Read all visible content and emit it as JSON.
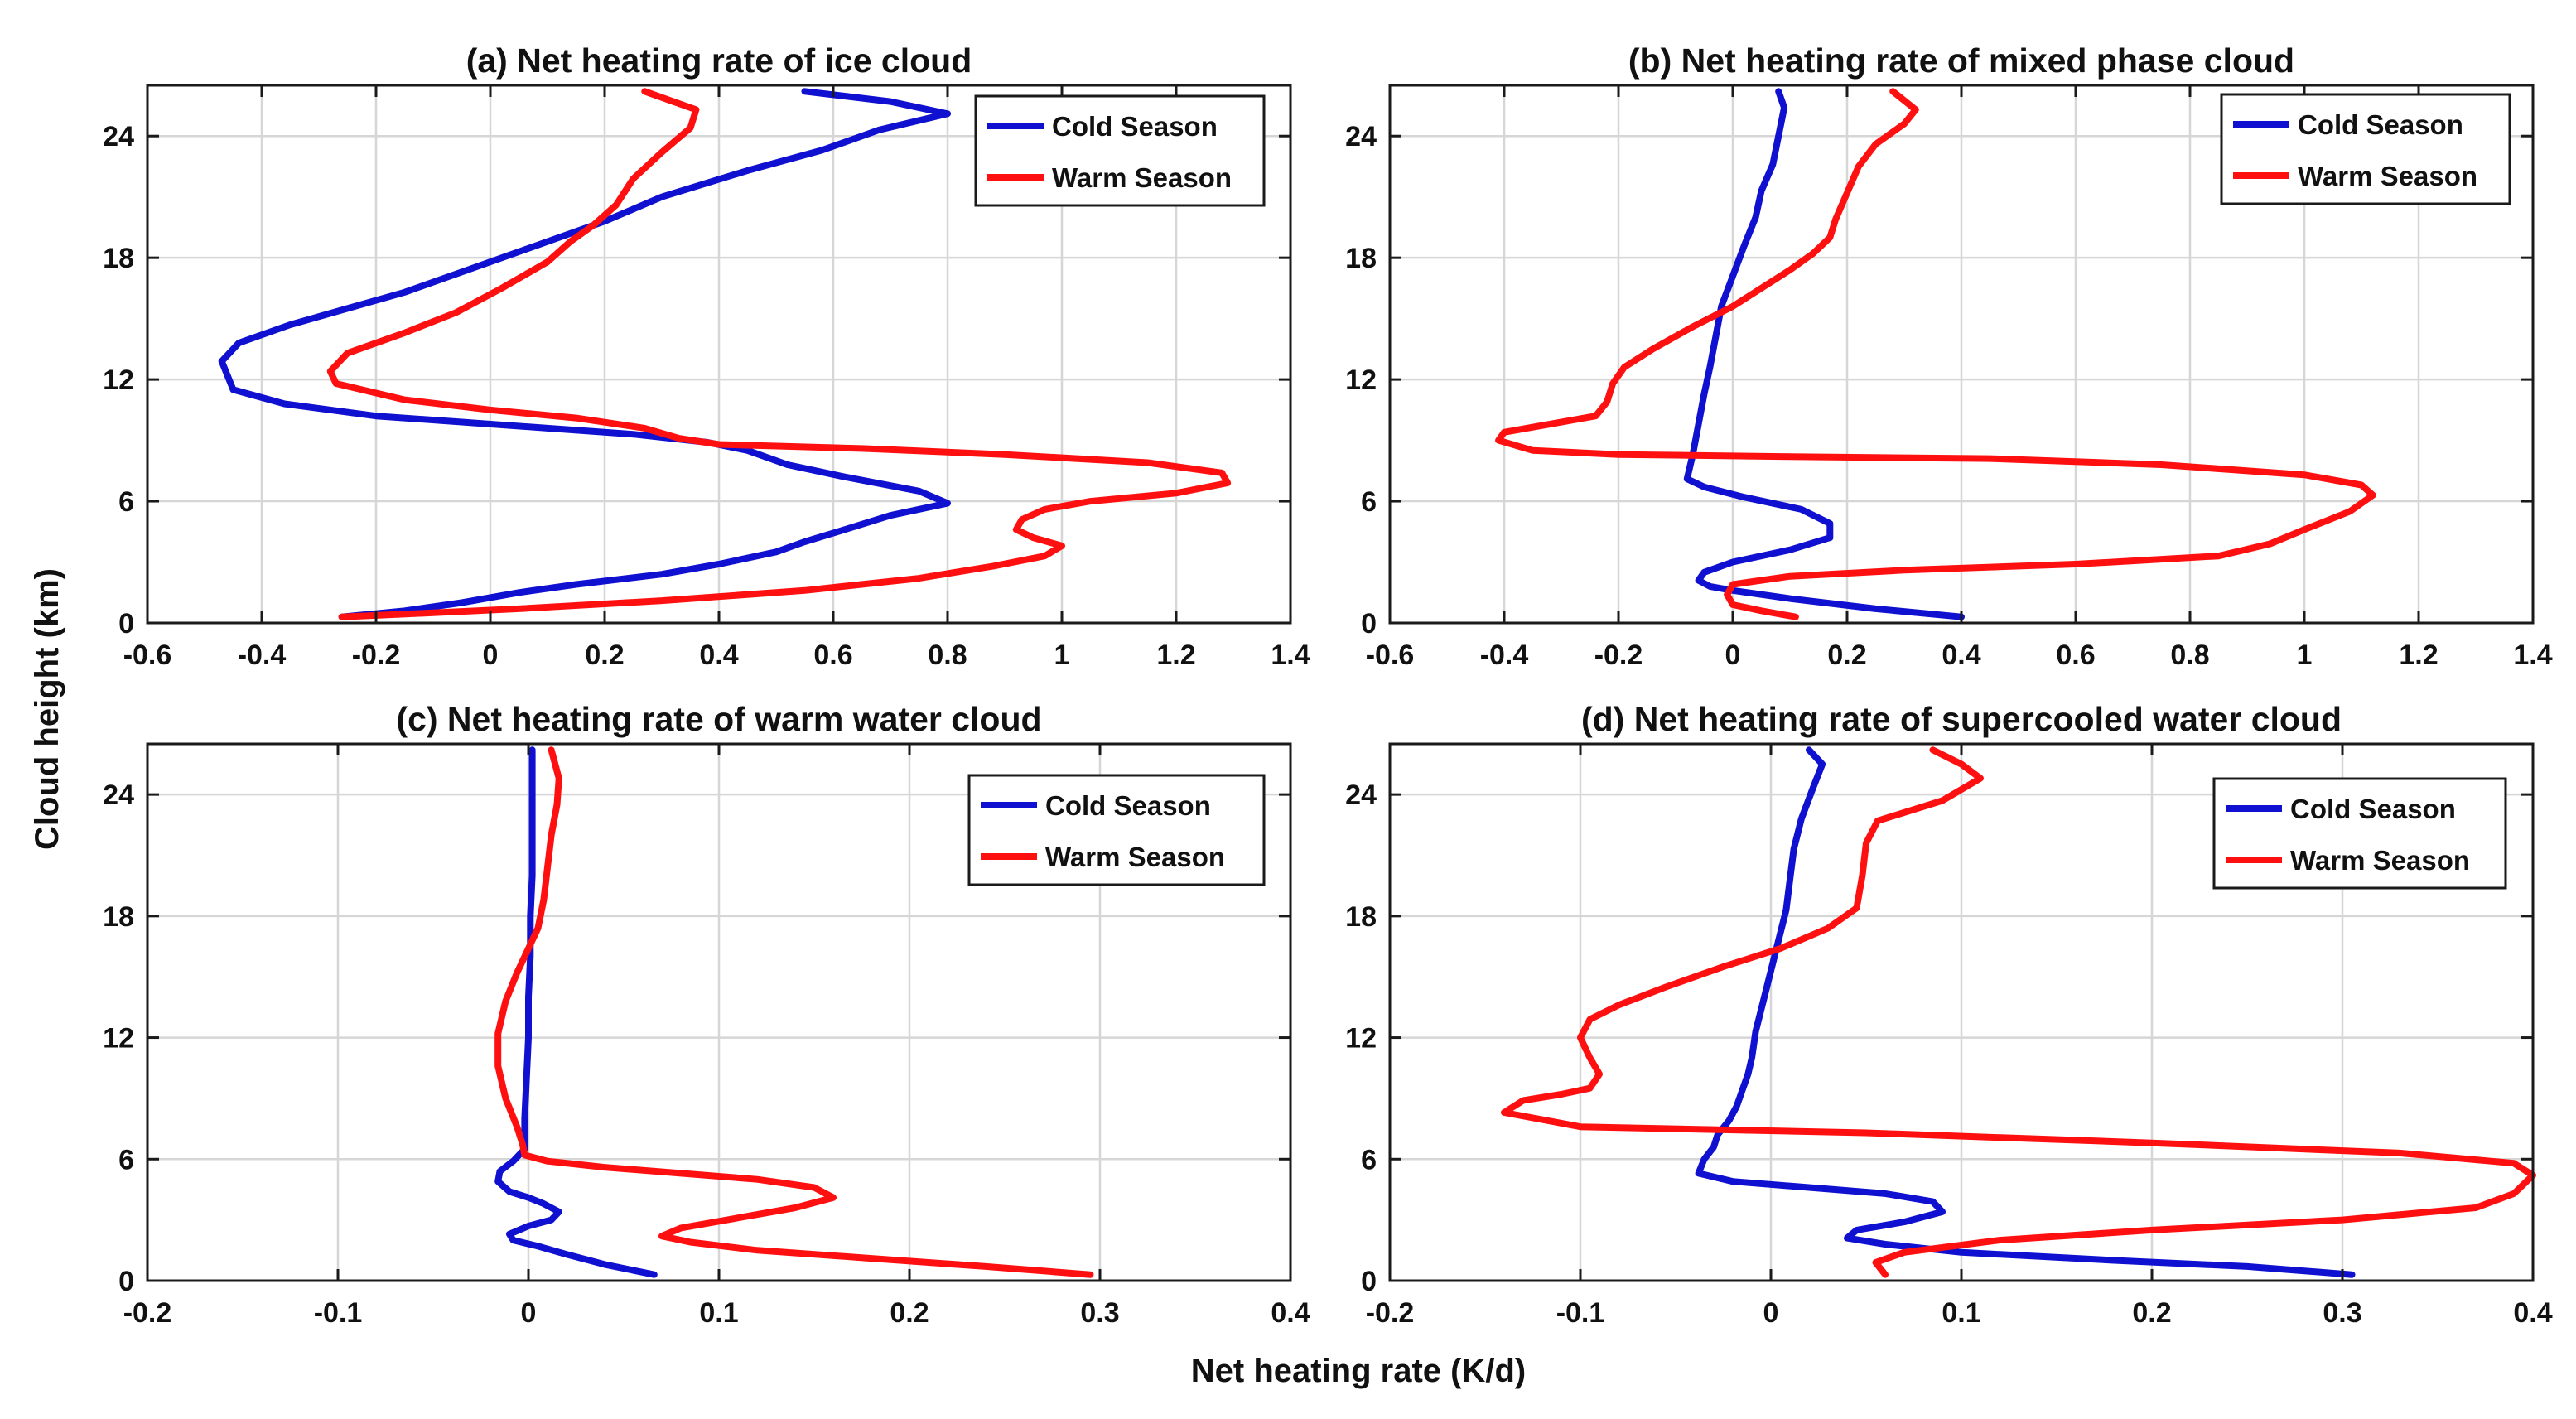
{
  "figure": {
    "shared_ylabel": "Cloud height (km)",
    "shared_xlabel": "Net heating rate (K/d)",
    "colors": {
      "cold": "#1010d0",
      "warm": "#ff1010"
    }
  },
  "chart_data": [
    {
      "type": "line",
      "title": "(a)  Net heating rate of ice cloud",
      "xlabel": "Net heating rate (K/d)",
      "ylabel": "Cloud height (km)",
      "xlim": [
        -0.6,
        1.4
      ],
      "ylim": [
        0,
        26.5
      ],
      "xticks": [
        -0.6,
        -0.4,
        -0.2,
        0,
        0.2,
        0.4,
        0.6,
        0.8,
        1,
        1.2,
        1.4
      ],
      "xtick_labels": [
        "-0.6",
        "-0.4",
        "-0.2",
        "0",
        "0.2",
        "0.4",
        "0.6",
        "0.8",
        "1",
        "1.2",
        "1.4"
      ],
      "yticks": [
        0,
        6,
        12,
        18,
        24
      ],
      "ytick_labels": [
        "0",
        "6",
        "12",
        "18",
        "24"
      ],
      "legend_position": "top-right",
      "series": [
        {
          "name": "Cold Season",
          "color": "#1010d0",
          "x": [
            -0.26,
            -0.15,
            -0.05,
            0.05,
            0.15,
            0.3,
            0.4,
            0.5,
            0.55,
            0.62,
            0.7,
            0.8,
            0.75,
            0.62,
            0.52,
            0.45,
            0.38,
            0.25,
            0.1,
            -0.05,
            -0.2,
            -0.36,
            -0.45,
            -0.46,
            -0.47,
            -0.44,
            -0.35,
            -0.25,
            -0.15,
            -0.02,
            0.1,
            0.2,
            0.3,
            0.45,
            0.58,
            0.68,
            0.8,
            0.7,
            0.55
          ],
          "y": [
            0.3,
            0.6,
            1.0,
            1.5,
            1.9,
            2.4,
            2.9,
            3.5,
            4.0,
            4.6,
            5.3,
            5.9,
            6.5,
            7.2,
            7.8,
            8.5,
            8.9,
            9.3,
            9.6,
            9.9,
            10.2,
            10.8,
            11.5,
            12.2,
            12.9,
            13.8,
            14.7,
            15.5,
            16.3,
            17.6,
            18.8,
            19.8,
            21.0,
            22.3,
            23.3,
            24.3,
            25.1,
            25.7,
            26.2
          ]
        },
        {
          "name": "Warm Season",
          "color": "#ff1010",
          "x": [
            -0.26,
            -0.1,
            0.05,
            0.3,
            0.55,
            0.75,
            0.88,
            0.97,
            1.0,
            0.95,
            0.92,
            0.93,
            0.97,
            1.05,
            1.2,
            1.29,
            1.28,
            1.15,
            0.9,
            0.65,
            0.4,
            0.33,
            0.27,
            0.15,
            0.0,
            -0.15,
            -0.27,
            -0.28,
            -0.25,
            -0.15,
            -0.06,
            0.02,
            0.1,
            0.14,
            0.18,
            0.22,
            0.25,
            0.3,
            0.35,
            0.36,
            0.27
          ],
          "y": [
            0.3,
            0.5,
            0.7,
            1.1,
            1.6,
            2.2,
            2.8,
            3.3,
            3.8,
            4.2,
            4.6,
            5.1,
            5.6,
            6.0,
            6.4,
            6.9,
            7.4,
            7.9,
            8.3,
            8.6,
            8.8,
            9.1,
            9.6,
            10.1,
            10.5,
            11.0,
            11.8,
            12.4,
            13.3,
            14.3,
            15.3,
            16.5,
            17.8,
            18.8,
            19.6,
            20.6,
            21.9,
            23.2,
            24.4,
            25.3,
            26.2
          ]
        }
      ]
    },
    {
      "type": "line",
      "title": "(b)  Net heating rate of mixed phase cloud",
      "xlabel": "Net heating rate (K/d)",
      "ylabel": "Cloud height (km)",
      "xlim": [
        -0.6,
        1.4
      ],
      "ylim": [
        0,
        26.5
      ],
      "xticks": [
        -0.6,
        -0.4,
        -0.2,
        0,
        0.2,
        0.4,
        0.6,
        0.8,
        1,
        1.2,
        1.4
      ],
      "xtick_labels": [
        "-0.6",
        "-0.4",
        "-0.2",
        "0",
        "0.2",
        "0.4",
        "0.6",
        "0.8",
        "1",
        "1.2",
        "1.4"
      ],
      "yticks": [
        0,
        6,
        12,
        18,
        24
      ],
      "ytick_labels": [
        "0",
        "6",
        "12",
        "18",
        "24"
      ],
      "legend_position": "top-right",
      "series": [
        {
          "name": "Cold Season",
          "color": "#1010d0",
          "x": [
            0.4,
            0.25,
            0.1,
            0.0,
            -0.04,
            -0.06,
            -0.05,
            0.0,
            0.1,
            0.17,
            0.17,
            0.12,
            0.02,
            -0.05,
            -0.08,
            -0.07,
            -0.06,
            -0.05,
            -0.04,
            -0.03,
            -0.02,
            0.0,
            0.02,
            0.04,
            0.05,
            0.07,
            0.08,
            0.09,
            0.08
          ],
          "y": [
            0.3,
            0.7,
            1.2,
            1.6,
            1.8,
            2.1,
            2.5,
            3.0,
            3.6,
            4.2,
            4.9,
            5.6,
            6.2,
            6.7,
            7.1,
            8.3,
            9.8,
            11.3,
            12.6,
            14.1,
            15.6,
            17.1,
            18.6,
            20.0,
            21.3,
            22.6,
            24.0,
            25.4,
            26.2
          ]
        },
        {
          "name": "Warm Season",
          "color": "#ff1010",
          "x": [
            0.11,
            0.05,
            0.0,
            -0.01,
            0.0,
            0.1,
            0.3,
            0.6,
            0.85,
            0.94,
            1.0,
            1.08,
            1.12,
            1.1,
            1.0,
            0.75,
            0.45,
            0.1,
            -0.2,
            -0.35,
            -0.41,
            -0.4,
            -0.32,
            -0.24,
            -0.22,
            -0.21,
            -0.19,
            -0.14,
            -0.07,
            0.0,
            0.05,
            0.1,
            0.14,
            0.17,
            0.18,
            0.2,
            0.22,
            0.25,
            0.3,
            0.32,
            0.28
          ],
          "y": [
            0.3,
            0.6,
            0.9,
            1.4,
            1.9,
            2.3,
            2.6,
            2.9,
            3.3,
            3.9,
            4.6,
            5.5,
            6.3,
            6.8,
            7.3,
            7.8,
            8.1,
            8.2,
            8.3,
            8.5,
            9.0,
            9.4,
            9.8,
            10.2,
            10.9,
            11.8,
            12.6,
            13.5,
            14.6,
            15.6,
            16.5,
            17.4,
            18.2,
            19.0,
            19.9,
            21.2,
            22.5,
            23.6,
            24.6,
            25.3,
            26.2
          ]
        }
      ]
    },
    {
      "type": "line",
      "title": "(c)  Net heating rate of warm water cloud",
      "xlabel": "Net heating rate (K/d)",
      "ylabel": "Cloud height (km)",
      "xlim": [
        -0.2,
        0.4
      ],
      "ylim": [
        0,
        26.5
      ],
      "xticks": [
        -0.2,
        -0.1,
        0,
        0.1,
        0.2,
        0.3,
        0.4
      ],
      "xtick_labels": [
        "-0.2",
        "-0.1",
        "0",
        "0.1",
        "0.2",
        "0.3",
        "0.4"
      ],
      "yticks": [
        0,
        6,
        12,
        18,
        24
      ],
      "ytick_labels": [
        "0",
        "6",
        "12",
        "18",
        "24"
      ],
      "legend_position": "top-right",
      "series": [
        {
          "name": "Cold Season",
          "color": "#1010d0",
          "x": [
            0.066,
            0.04,
            0.02,
            0.005,
            -0.008,
            -0.01,
            0.0,
            0.012,
            0.016,
            0.008,
            0.0,
            -0.01,
            -0.016,
            -0.015,
            -0.008,
            -0.002,
            -0.002,
            -0.001,
            0.0,
            0.0,
            0.001,
            0.001,
            0.002,
            0.002,
            0.002
          ],
          "y": [
            0.3,
            0.8,
            1.3,
            1.7,
            2.0,
            2.3,
            2.7,
            3.0,
            3.4,
            3.8,
            4.1,
            4.4,
            4.9,
            5.4,
            5.9,
            6.5,
            8.0,
            10.0,
            12.0,
            14.0,
            16.0,
            18.0,
            20.0,
            22.5,
            26.2
          ]
        },
        {
          "name": "Warm Season",
          "color": "#ff1010",
          "x": [
            0.295,
            0.24,
            0.18,
            0.12,
            0.085,
            0.07,
            0.08,
            0.11,
            0.14,
            0.16,
            0.15,
            0.12,
            0.08,
            0.04,
            0.01,
            -0.002,
            -0.003,
            -0.006,
            -0.012,
            -0.016,
            -0.016,
            -0.012,
            -0.006,
            0.0,
            0.005,
            0.008,
            0.01,
            0.012,
            0.015,
            0.016,
            0.012
          ],
          "y": [
            0.3,
            0.7,
            1.1,
            1.5,
            1.9,
            2.2,
            2.6,
            3.1,
            3.6,
            4.1,
            4.6,
            5.0,
            5.3,
            5.6,
            5.9,
            6.2,
            6.7,
            7.6,
            9.0,
            10.6,
            12.2,
            13.8,
            15.2,
            16.4,
            17.4,
            18.8,
            20.4,
            22.0,
            23.5,
            24.8,
            26.2
          ]
        }
      ]
    },
    {
      "type": "line",
      "title": "(d)  Net heating rate of supercooled water cloud",
      "xlabel": "Net heating rate (K/d)",
      "ylabel": "Cloud height (km)",
      "xlim": [
        -0.2,
        0.4
      ],
      "ylim": [
        0,
        26.5
      ],
      "xticks": [
        -0.2,
        -0.1,
        0,
        0.1,
        0.2,
        0.3,
        0.4
      ],
      "xtick_labels": [
        "-0.2",
        "-0.1",
        "0",
        "0.1",
        "0.2",
        "0.3",
        "0.4"
      ],
      "yticks": [
        0,
        6,
        12,
        18,
        24
      ],
      "ytick_labels": [
        "0",
        "6",
        "12",
        "18",
        "24"
      ],
      "legend_position": "top-right",
      "series": [
        {
          "name": "Cold Season",
          "color": "#1010d0",
          "x": [
            0.305,
            0.25,
            0.18,
            0.1,
            0.06,
            0.04,
            0.045,
            0.07,
            0.09,
            0.085,
            0.06,
            0.02,
            -0.02,
            -0.038,
            -0.035,
            -0.03,
            -0.028,
            -0.022,
            -0.018,
            -0.015,
            -0.012,
            -0.01,
            -0.008,
            -0.004,
            0.0,
            0.004,
            0.008,
            0.01,
            0.012,
            0.016,
            0.022,
            0.027,
            0.02
          ],
          "y": [
            0.3,
            0.7,
            1.0,
            1.4,
            1.8,
            2.1,
            2.5,
            2.9,
            3.4,
            3.9,
            4.3,
            4.6,
            4.9,
            5.3,
            6.0,
            6.6,
            7.2,
            7.9,
            8.6,
            9.4,
            10.2,
            11.0,
            12.3,
            13.8,
            15.3,
            16.8,
            18.3,
            19.8,
            21.3,
            22.8,
            24.3,
            25.5,
            26.2
          ]
        },
        {
          "name": "Warm Season",
          "color": "#ff1010",
          "x": [
            0.06,
            0.055,
            0.07,
            0.12,
            0.2,
            0.3,
            0.37,
            0.39,
            0.4,
            0.39,
            0.33,
            0.2,
            0.05,
            -0.1,
            -0.14,
            -0.13,
            -0.11,
            -0.095,
            -0.09,
            -0.095,
            -0.1,
            -0.095,
            -0.08,
            -0.055,
            -0.025,
            0.005,
            0.03,
            0.045,
            0.048,
            0.05,
            0.056,
            0.09,
            0.11,
            0.1,
            0.085
          ],
          "y": [
            0.3,
            0.9,
            1.4,
            2.0,
            2.5,
            3.0,
            3.6,
            4.3,
            5.2,
            5.8,
            6.3,
            6.8,
            7.3,
            7.6,
            8.3,
            8.9,
            9.2,
            9.5,
            10.2,
            11.0,
            12.0,
            12.9,
            13.6,
            14.5,
            15.5,
            16.4,
            17.4,
            18.4,
            20.0,
            21.6,
            22.7,
            23.7,
            24.8,
            25.5,
            26.2
          ]
        }
      ]
    }
  ]
}
